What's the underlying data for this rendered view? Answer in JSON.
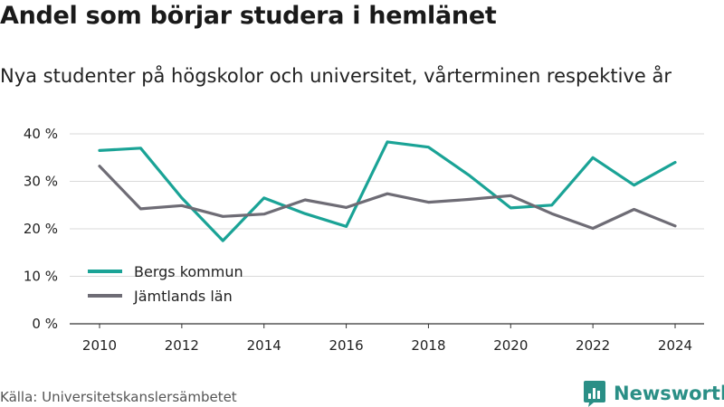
{
  "title": "Andel som börjar studera i hemlänet",
  "subtitle": "Nya studenter på högskolor och universitet, vårterminen respektive år",
  "source": "Källa: Universitetskanslersämbetet",
  "brand": {
    "name": "Newsworthy",
    "logo_icon": "bar-chart-bubble-icon",
    "color": "#2a8f86"
  },
  "chart_data": {
    "type": "line",
    "x": [
      2010,
      2011,
      2012,
      2013,
      2014,
      2015,
      2016,
      2017,
      2018,
      2019,
      2020,
      2021,
      2022,
      2023,
      2024
    ],
    "x_ticks": [
      2010,
      2012,
      2014,
      2016,
      2018,
      2020,
      2022,
      2024
    ],
    "x_tick_labels": [
      "2010",
      "2012",
      "2014",
      "2016",
      "2018",
      "2020",
      "2022",
      "2024"
    ],
    "y_ticks": [
      0,
      10,
      20,
      30,
      40
    ],
    "y_tick_labels": [
      "0 %",
      "10 %",
      "20 %",
      "30 %",
      "40 %"
    ],
    "ylim": [
      0,
      40
    ],
    "grid": true,
    "legend_position": "bottom-left",
    "series": [
      {
        "name": "Bergs kommun",
        "color": "#1aa396",
        "values": [
          36.5,
          37.0,
          26.5,
          17.5,
          26.5,
          23.2,
          20.5,
          38.3,
          37.2,
          31.2,
          24.4,
          25.0,
          35.0,
          29.2,
          34.0
        ]
      },
      {
        "name": "Jämtlands län",
        "color": "#6e6c75",
        "values": [
          33.2,
          24.2,
          24.9,
          22.6,
          23.1,
          26.1,
          24.5,
          27.4,
          25.6,
          26.2,
          27.0,
          23.2,
          20.1,
          24.1,
          20.6
        ]
      }
    ]
  }
}
